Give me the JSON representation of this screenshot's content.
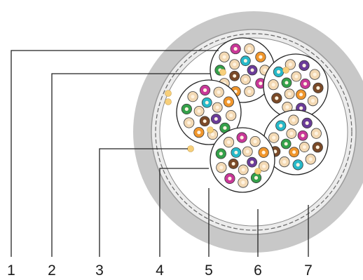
{
  "callouts": [
    {
      "label": "1"
    },
    {
      "label": "2"
    },
    {
      "label": "3"
    },
    {
      "label": "4"
    },
    {
      "label": "5"
    },
    {
      "label": "6"
    },
    {
      "label": "7"
    }
  ],
  "colors": {
    "outer_sheath": "#c8c8c8",
    "sheath_edge": "#9a9a9a",
    "inner_fill": "#ffffff",
    "bundle_outline": "#222222",
    "conductor_beige": "#f3d9b4",
    "cyan": "#27b8c8",
    "magenta": "#c83898",
    "purple": "#6a3c98",
    "orange": "#f0962c",
    "brown": "#7a4a28",
    "green": "#34a04a",
    "filler_yellow": "#f7cf7a",
    "leader_line": "#222222"
  }
}
